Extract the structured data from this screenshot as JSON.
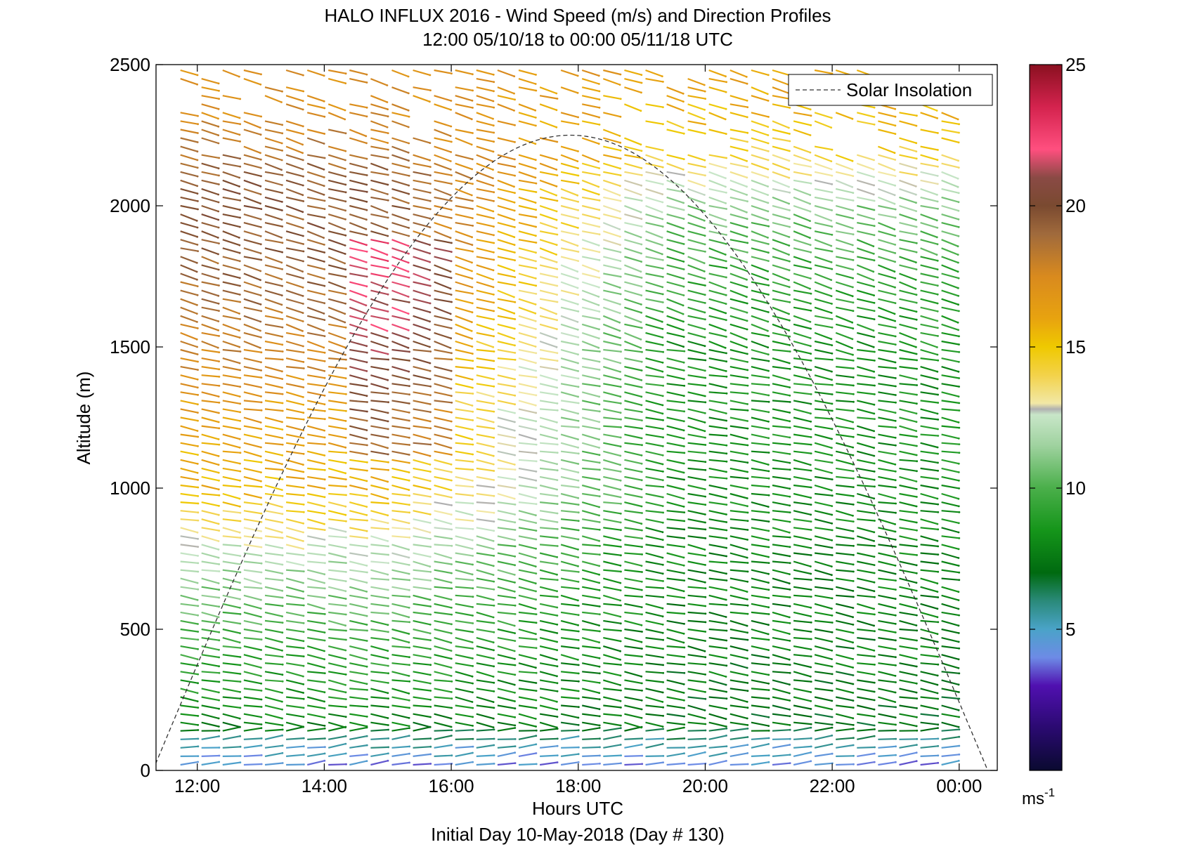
{
  "chart_data": {
    "type": "scatter",
    "title": "HALO INFLUX 2016 - Wind Speed (m/s) and Direction Profiles",
    "subtitle": "12:00 05/10/18 to 00:00 05/11/18  UTC",
    "xlabel": "Hours UTC",
    "xlabel2": "Initial Day 10-May-2018 (Day # 130)",
    "ylabel": "Altitude (m)",
    "xlim": [
      11.35,
      24.6
    ],
    "ylim": [
      0,
      2500
    ],
    "x_ticks": [
      12,
      14,
      16,
      18,
      20,
      22,
      24
    ],
    "x_tick_labels": [
      "12:00",
      "14:00",
      "16:00",
      "18:00",
      "20:00",
      "22:00",
      "00:00"
    ],
    "y_ticks": [
      0,
      500,
      1000,
      1500,
      2000,
      2500
    ],
    "y_tick_labels": [
      "0",
      "500",
      "1000",
      "1500",
      "2000",
      "2500"
    ],
    "legend": {
      "label": "Solar Insolation",
      "placement": "top-right",
      "style": "dashed"
    },
    "colorbar": {
      "range": [
        0,
        25
      ],
      "ticks": [
        5,
        10,
        15,
        20,
        25
      ],
      "tick_labels": [
        "5",
        "10",
        "15",
        "20",
        "25"
      ],
      "unit_label": "ms",
      "unit_superscript": "-1",
      "stops": [
        [
          0,
          "#0a0a30"
        ],
        [
          1.5,
          "#2a0a70"
        ],
        [
          3,
          "#5010b0"
        ],
        [
          4,
          "#6d8be6"
        ],
        [
          5,
          "#4aa3c8"
        ],
        [
          6,
          "#2a8a7a"
        ],
        [
          7,
          "#006a10"
        ],
        [
          8.5,
          "#15951a"
        ],
        [
          10,
          "#4aaf4a"
        ],
        [
          11.5,
          "#9fd29f"
        ],
        [
          12.6,
          "#c8e6c8"
        ],
        [
          12.8,
          "#b0b0b0"
        ],
        [
          13,
          "#f2e8a6"
        ],
        [
          14,
          "#f3d24a"
        ],
        [
          15,
          "#efc900"
        ],
        [
          16,
          "#e8a30f"
        ],
        [
          17.5,
          "#d98a1e"
        ],
        [
          19,
          "#a06a3c"
        ],
        [
          20,
          "#7a4a30"
        ],
        [
          21,
          "#8a4a45"
        ],
        [
          22,
          "#ff4f7f"
        ],
        [
          23.5,
          "#d4234e"
        ],
        [
          25,
          "#8a1020"
        ]
      ]
    },
    "solar_insolation": {
      "peak_time": 17.8,
      "peak_altitude": 2250,
      "sunrise": 11.3,
      "sunset": 24.45
    },
    "wind_profiles": {
      "time_start": 11.8,
      "time_end": 23.8,
      "time_step": 0.333,
      "altitude_start": 20,
      "altitude_step": 30,
      "vector_length_hours": 0.28,
      "speed_by_altitude": {
        "description_points": [
          [
            20,
            4.2
          ],
          [
            60,
            4.8
          ],
          [
            100,
            5.6
          ],
          [
            150,
            7.5
          ],
          [
            250,
            8.5
          ],
          [
            400,
            9.2
          ],
          [
            600,
            10.5
          ],
          [
            800,
            12.5
          ],
          [
            1000,
            15.5
          ],
          [
            1300,
            16.5
          ],
          [
            1600,
            18.5
          ],
          [
            1900,
            19.5
          ],
          [
            2100,
            19.5
          ],
          [
            2300,
            17.5
          ],
          [
            2500,
            17.0
          ]
        ],
        "late_day_points": [
          [
            20,
            4.2
          ],
          [
            60,
            4.8
          ],
          [
            100,
            5.6
          ],
          [
            150,
            7.2
          ],
          [
            300,
            7.5
          ],
          [
            600,
            7.8
          ],
          [
            900,
            8.2
          ],
          [
            1200,
            8.5
          ],
          [
            1500,
            8.5
          ],
          [
            1800,
            9.5
          ],
          [
            2000,
            11.0
          ],
          [
            2200,
            14.5
          ],
          [
            2500,
            16.5
          ]
        ]
      }
    }
  }
}
